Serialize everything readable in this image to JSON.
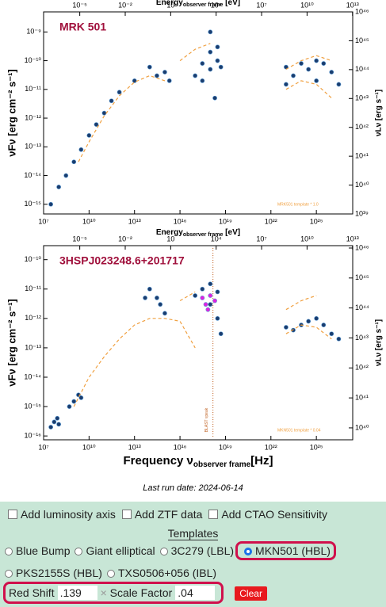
{
  "chart_data": [
    {
      "type": "scatter",
      "title": "MRK 501",
      "annotation": "MRK501 template * 1.0",
      "ylabel": "νFν [erg cm⁻² s⁻¹]",
      "y2label": "νLν [erg s⁻¹]",
      "x2label": "Energy",
      "x2label_sub": "observer frame",
      "x2label_unit": " [eV]",
      "xscale": "log",
      "yscale": "log",
      "xlim": [
        10000000.0,
        2.5e+27
      ],
      "ylim": [
        4.6e-16,
        5e-09
      ],
      "x2lim": [
        4.1e-08,
        10300000000000.0
      ],
      "y2lim": [
        1e+39,
        1e+46
      ],
      "xticks": [
        {
          "value": 10000000.0,
          "label": "10⁷"
        },
        {
          "value": 10000000000.0,
          "label": "10¹⁰"
        },
        {
          "value": 10000000000000.0,
          "label": "10¹³"
        },
        {
          "value": 1e+16,
          "label": "10¹⁶"
        },
        {
          "value": 1e+19,
          "label": "10¹⁹"
        },
        {
          "value": 1e+22,
          "label": "10²²"
        },
        {
          "value": 1e+25,
          "label": "10²⁵"
        }
      ],
      "x2ticks": [
        {
          "value": 1e-05,
          "label": "10⁻⁵"
        },
        {
          "value": 0.01,
          "label": "10⁻²"
        },
        {
          "value": 10,
          "label": "10"
        },
        {
          "value": 10000.0,
          "label": "10⁴"
        },
        {
          "value": 10000000.0,
          "label": "10⁷"
        },
        {
          "value": 10000000000.0,
          "label": "10¹⁰"
        },
        {
          "value": 10000000000000.0,
          "label": "10¹³"
        }
      ],
      "yticks": [
        {
          "value": 1e-09,
          "label": "10⁻⁹"
        },
        {
          "value": 1e-10,
          "label": "10⁻¹⁰"
        },
        {
          "value": 1e-11,
          "label": "10⁻¹¹"
        },
        {
          "value": 1e-12,
          "label": "10⁻¹²"
        },
        {
          "value": 1e-13,
          "label": "10⁻¹³"
        },
        {
          "value": 1e-14,
          "label": "10⁻¹⁴"
        },
        {
          "value": 1e-15,
          "label": "10⁻¹⁵"
        }
      ],
      "y2ticks": [
        {
          "value": 1e+39,
          "label": "10³⁹"
        },
        {
          "value": 1e+40,
          "label": "10⁴⁰"
        },
        {
          "value": 1e+41,
          "label": "10⁴¹"
        },
        {
          "value": 1e+42,
          "label": "10⁴²"
        },
        {
          "value": 1e+43,
          "label": "10⁴³"
        },
        {
          "value": 1e+44,
          "label": "10⁴⁴"
        },
        {
          "value": 1e+45,
          "label": "10⁴⁵"
        },
        {
          "value": 1e+46,
          "label": "10⁴⁶"
        }
      ],
      "series": [
        {
          "type": "scatter",
          "color": "#1b3d6e",
          "x": [
            30000000.0,
            100000000.0,
            300000000.0,
            1000000000.0,
            3000000000.0,
            10000000000.0,
            30000000000.0,
            100000000000.0,
            300000000000.0,
            1000000000000.0,
            10000000000000.0,
            100000000000000.0,
            300000000000000.0,
            1000000000000000.0,
            2000000000000000.0,
            1e+17,
            3e+17,
            1e+18,
            1e+18,
            3e+18,
            3e+18,
            1e+18,
            3e+17,
            2e+18,
            5e+18,
            1e+23,
            1e+23,
            3e+23,
            1e+24,
            3e+24,
            1e+25,
            1e+25,
            3e+25,
            1e+26,
            3e+26
          ],
          "values": [
            1e-15,
            4e-15,
            1e-14,
            3e-14,
            8e-14,
            2.5e-13,
            6e-13,
            1.5e-12,
            4e-12,
            8e-12,
            2e-11,
            6e-11,
            3e-11,
            4e-11,
            2e-11,
            3e-11,
            8e-11,
            2e-10,
            5e-11,
            1e-10,
            3e-10,
            1e-09,
            2e-11,
            5e-12,
            6e-11,
            6e-11,
            1.5e-11,
            3e-11,
            8e-11,
            5e-11,
            1e-10,
            2e-11,
            8e-11,
            4e-11,
            1.5e-11
          ]
        },
        {
          "type": "line",
          "color": "#f0a040",
          "style": "dashed",
          "x": [
            2000000000.0,
            10000000000.0,
            100000000000.0,
            1000000000000.0,
            10000000000000.0,
            100000000000000.0,
            1000000000000000.0,
            null,
            1e+16,
            1e+17,
            1e+18,
            null,
            1e+23,
            1e+24,
            1e+25,
            1e+26,
            null,
            1e+23,
            1e+24,
            1e+25,
            1e+26
          ],
          "values": [
            3e-14,
            1.5e-13,
            1.2e-12,
            6e-12,
            1.8e-11,
            3e-11,
            2e-11,
            null,
            1e-10,
            2.5e-10,
            4e-10,
            null,
            5e-11,
            1e-10,
            1.5e-10,
            1e-10,
            null,
            1e-11,
            2e-11,
            1.5e-11,
            5e-12
          ]
        }
      ]
    },
    {
      "type": "scatter",
      "title": "3HSPJ023248.6+201717",
      "annotation": "MKN501 template * 0.04",
      "ylabel": "νFν [erg cm⁻² s⁻¹]",
      "y2label": "νLν [erg s⁻¹]",
      "x2label": "Energy",
      "x2label_sub": "observer frame",
      "x2label_unit": " [eV]",
      "xlabel": "Frequency ν",
      "xlabel_sub": "observer frame",
      "xlabel_unit": "[Hz]",
      "blast_label": "BLAST νpeak",
      "blast_peak": 1.5e+18,
      "xscale": "log",
      "yscale": "log",
      "xlim": [
        10000000.0,
        2.5e+27
      ],
      "ylim": [
        7.4e-17,
        3e-10
      ],
      "x2lim": [
        4.1e-08,
        10300000000000.0
      ],
      "y2lim": [
        4e+39,
        1.2e+46
      ],
      "xticks": [
        {
          "value": 10000000.0,
          "label": "10⁷"
        },
        {
          "value": 10000000000.0,
          "label": "10¹⁰"
        },
        {
          "value": 10000000000000.0,
          "label": "10¹³"
        },
        {
          "value": 1e+16,
          "label": "10¹⁶"
        },
        {
          "value": 1e+19,
          "label": "10¹⁹"
        },
        {
          "value": 1e+22,
          "label": "10²²"
        },
        {
          "value": 1e+25,
          "label": "10²⁵"
        }
      ],
      "x2ticks": [
        {
          "value": 1e-05,
          "label": "10⁻⁵"
        },
        {
          "value": 0.01,
          "label": "10⁻²"
        },
        {
          "value": 10,
          "label": "10"
        },
        {
          "value": 10000.0,
          "label": "10⁴"
        },
        {
          "value": 10000000.0,
          "label": "10⁷"
        },
        {
          "value": 10000000000.0,
          "label": "10¹⁰"
        },
        {
          "value": 10000000000000.0,
          "label": "10¹³"
        }
      ],
      "yticks": [
        {
          "value": 1e-10,
          "label": "10⁻¹⁰"
        },
        {
          "value": 1e-11,
          "label": "10⁻¹¹"
        },
        {
          "value": 1e-12,
          "label": "10⁻¹²"
        },
        {
          "value": 1e-13,
          "label": "10⁻¹³"
        },
        {
          "value": 1e-14,
          "label": "10⁻¹⁴"
        },
        {
          "value": 1e-15,
          "label": "10⁻¹⁵"
        },
        {
          "value": 1e-16,
          "label": "10⁻¹⁶"
        }
      ],
      "y2ticks": [
        {
          "value": 1e+40,
          "label": "10⁴⁰"
        },
        {
          "value": 1e+41,
          "label": "10⁴¹"
        },
        {
          "value": 1e+42,
          "label": "10⁴²"
        },
        {
          "value": 1e+43,
          "label": "10⁴³"
        },
        {
          "value": 1e+44,
          "label": "10⁴⁴"
        },
        {
          "value": 1e+45,
          "label": "10⁴⁵"
        },
        {
          "value": 1e+46,
          "label": "10⁴⁶"
        }
      ],
      "series": [
        {
          "type": "scatter",
          "color": "#1b3d6e",
          "x": [
            30000000.0,
            50000000.0,
            80000000.0,
            100000000.0,
            500000000.0,
            1000000000.0,
            2000000000.0,
            3000000000.0,
            50000000000000.0,
            100000000000000.0,
            300000000000000.0,
            500000000000000.0,
            1000000000000000.0,
            1e+17,
            3e+17,
            1e+18,
            3e+18,
            1e+18,
            3e+18,
            5e+18,
            1e+23,
            3e+23,
            1e+24,
            3e+24,
            1e+25,
            3e+25,
            1e+26,
            3e+26
          ],
          "values": [
            2e-16,
            3e-16,
            4e-16,
            2.5e-16,
            1e-15,
            1.5e-15,
            2.5e-15,
            2e-15,
            5e-12,
            1e-11,
            5e-12,
            3e-12,
            1.5e-12,
            6e-12,
            1e-11,
            1.5e-11,
            8e-12,
            3e-12,
            1e-12,
            3e-13,
            5e-13,
            4e-13,
            6e-13,
            8e-13,
            1e-12,
            6e-13,
            3e-13,
            2e-13
          ]
        },
        {
          "type": "scatter",
          "color": "#e020e0",
          "x": [
            3e+17,
            5e+17,
            1e+18,
            2e+18,
            7e+17
          ],
          "values": [
            5e-12,
            3e-12,
            6e-12,
            4e-12,
            2e-12
          ]
        },
        {
          "type": "line",
          "color": "#f0a040",
          "style": "dashed",
          "x": [
            1000000000.0,
            10000000000.0,
            100000000000.0,
            1000000000000.0,
            10000000000000.0,
            100000000000000.0,
            1000000000000000.0,
            1e+16,
            1e+17,
            null,
            1e+16,
            1e+17,
            null,
            1e+23,
            1e+24,
            1e+25,
            null,
            1e+23,
            1e+24,
            1e+25,
            1e+26
          ],
          "values": [
            1e-15,
            1e-14,
            5e-14,
            2e-13,
            6e-13,
            1e-12,
            1e-12,
            8e-13,
            1e-13,
            null,
            4e-12,
            8e-12,
            null,
            2e-12,
            4e-12,
            6e-12,
            null,
            3e-13,
            6e-13,
            5e-13,
            2e-13
          ]
        }
      ]
    }
  ],
  "footer": {
    "last_run": "Last run date: 2024-06-14"
  },
  "controls": {
    "checkboxes": [
      "Add luminosity axis",
      "Add ZTF data",
      "Add CTAO Sensitivity"
    ],
    "templates_heading": "Templates",
    "templates": [
      {
        "label": "Blue Bump",
        "checked": false
      },
      {
        "label": "Giant elliptical",
        "checked": false
      },
      {
        "label": "3C279 (LBL)",
        "checked": false
      },
      {
        "label": "MKN501 (HBL)",
        "checked": true
      },
      {
        "label": "PKS2155S (HBL)",
        "checked": false
      },
      {
        "label": "TXS0506+056 (IBL)",
        "checked": false
      }
    ],
    "redshift_label": "Red Shift",
    "redshift": ".139",
    "clear_x": "×",
    "scale_label": "Scale Factor",
    "scale": ".04",
    "clear": "Clear"
  }
}
